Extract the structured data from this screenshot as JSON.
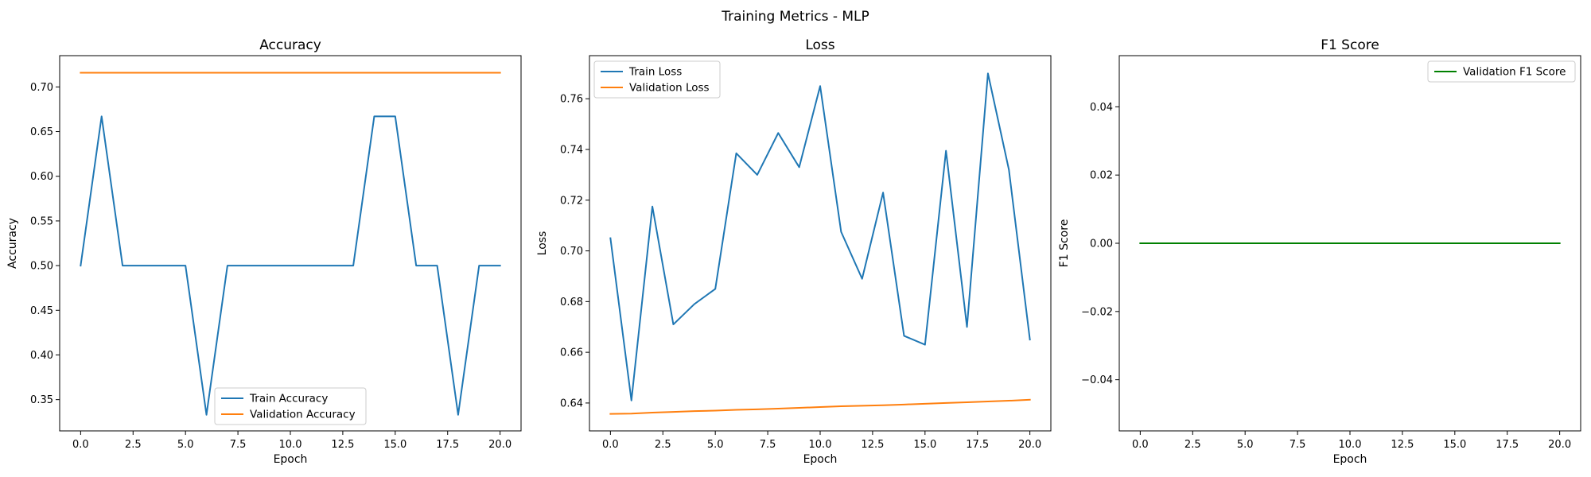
{
  "figure_title": "Training Metrics - MLP",
  "chart_data": [
    {
      "type": "line",
      "title": "Accuracy",
      "xlabel": "Epoch",
      "ylabel": "Accuracy",
      "xlim": [
        -1.0,
        21.0
      ],
      "ylim": [
        0.315,
        0.735
      ],
      "xticks": [
        0.0,
        2.5,
        5.0,
        7.5,
        10.0,
        12.5,
        15.0,
        17.5,
        20.0
      ],
      "xtick_labels": [
        "0.0",
        "2.5",
        "5.0",
        "7.5",
        "10.0",
        "12.5",
        "15.0",
        "17.5",
        "20.0"
      ],
      "yticks": [
        0.35,
        0.4,
        0.45,
        0.5,
        0.55,
        0.6,
        0.65,
        0.7
      ],
      "ytick_labels": [
        "0.35",
        "0.40",
        "0.45",
        "0.50",
        "0.55",
        "0.60",
        "0.65",
        "0.70"
      ],
      "grid": false,
      "legend_position": "lower-center",
      "x": [
        0,
        1,
        2,
        3,
        4,
        5,
        6,
        7,
        8,
        9,
        10,
        11,
        12,
        13,
        14,
        15,
        16,
        17,
        18,
        19,
        20
      ],
      "series": [
        {
          "name": "Train Accuracy",
          "color": "#1f77b4",
          "values": [
            0.5,
            0.667,
            0.5,
            0.5,
            0.5,
            0.5,
            0.333,
            0.5,
            0.5,
            0.5,
            0.5,
            0.5,
            0.5,
            0.5,
            0.667,
            0.667,
            0.5,
            0.5,
            0.333,
            0.5,
            0.5
          ]
        },
        {
          "name": "Validation Accuracy",
          "color": "#ff7f0e",
          "values": [
            0.7159,
            0.7159,
            0.7159,
            0.7159,
            0.7159,
            0.7159,
            0.7159,
            0.7159,
            0.7159,
            0.7159,
            0.7159,
            0.7159,
            0.7159,
            0.7159,
            0.7159,
            0.7159,
            0.7159,
            0.7159,
            0.7159,
            0.7159,
            0.7159
          ]
        }
      ]
    },
    {
      "type": "line",
      "title": "Loss",
      "xlabel": "Epoch",
      "ylabel": "Loss",
      "xlim": [
        -1.0,
        21.0
      ],
      "ylim": [
        0.629,
        0.777
      ],
      "xticks": [
        0.0,
        2.5,
        5.0,
        7.5,
        10.0,
        12.5,
        15.0,
        17.5,
        20.0
      ],
      "xtick_labels": [
        "0.0",
        "2.5",
        "5.0",
        "7.5",
        "10.0",
        "12.5",
        "15.0",
        "17.5",
        "20.0"
      ],
      "yticks": [
        0.64,
        0.66,
        0.68,
        0.7,
        0.72,
        0.74,
        0.76
      ],
      "ytick_labels": [
        "0.64",
        "0.66",
        "0.68",
        "0.70",
        "0.72",
        "0.74",
        "0.76"
      ],
      "grid": false,
      "legend_position": "top-left",
      "x": [
        0,
        1,
        2,
        3,
        4,
        5,
        6,
        7,
        8,
        9,
        10,
        11,
        12,
        13,
        14,
        15,
        16,
        17,
        18,
        19,
        20
      ],
      "series": [
        {
          "name": "Train Loss",
          "color": "#1f77b4",
          "values": [
            0.705,
            0.641,
            0.7175,
            0.671,
            0.679,
            0.685,
            0.7385,
            0.73,
            0.7465,
            0.733,
            0.765,
            0.7075,
            0.689,
            0.723,
            0.6665,
            0.663,
            0.7395,
            0.67,
            0.77,
            0.732,
            0.665
          ]
        },
        {
          "name": "Validation Loss",
          "color": "#ff7f0e",
          "values": [
            0.6357,
            0.6358,
            0.6362,
            0.6365,
            0.6368,
            0.637,
            0.6373,
            0.6375,
            0.6378,
            0.6381,
            0.6384,
            0.6387,
            0.6389,
            0.6391,
            0.6394,
            0.6397,
            0.64,
            0.6403,
            0.6406,
            0.6409,
            0.6413
          ]
        }
      ]
    },
    {
      "type": "line",
      "title": "F1 Score",
      "xlabel": "Epoch",
      "ylabel": "F1 Score",
      "xlim": [
        -1.0,
        21.0
      ],
      "ylim": [
        -0.055,
        0.055
      ],
      "xticks": [
        0.0,
        2.5,
        5.0,
        7.5,
        10.0,
        12.5,
        15.0,
        17.5,
        20.0
      ],
      "xtick_labels": [
        "0.0",
        "2.5",
        "5.0",
        "7.5",
        "10.0",
        "12.5",
        "15.0",
        "17.5",
        "20.0"
      ],
      "yticks": [
        -0.04,
        -0.02,
        0.0,
        0.02,
        0.04
      ],
      "ytick_labels": [
        "−0.04",
        "−0.02",
        "0.00",
        "0.02",
        "0.04"
      ],
      "grid": false,
      "legend_position": "top-right",
      "x": [
        0,
        1,
        2,
        3,
        4,
        5,
        6,
        7,
        8,
        9,
        10,
        11,
        12,
        13,
        14,
        15,
        16,
        17,
        18,
        19,
        20
      ],
      "series": [
        {
          "name": "Validation F1 Score",
          "color": "#008000",
          "values": [
            0,
            0,
            0,
            0,
            0,
            0,
            0,
            0,
            0,
            0,
            0,
            0,
            0,
            0,
            0,
            0,
            0,
            0,
            0,
            0,
            0
          ]
        }
      ]
    }
  ]
}
